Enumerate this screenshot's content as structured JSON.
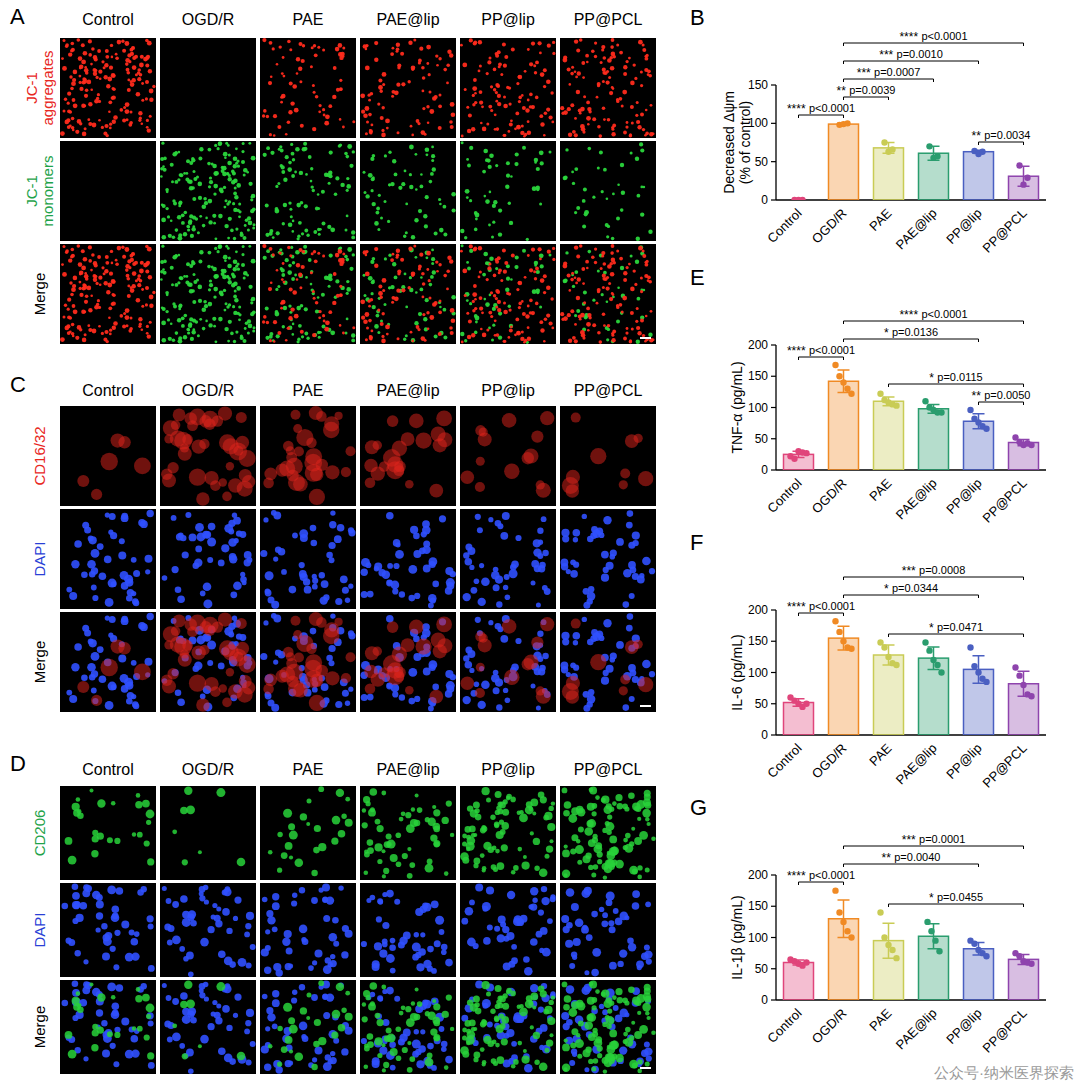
{
  "image_panels": [
    {
      "letter": "A",
      "columns": [
        "Control",
        "OGD/R",
        "PAE",
        "PAE@lip",
        "PP@lip",
        "PP@PCL"
      ],
      "rows": [
        {
          "label": "JC-1\naggregates",
          "color": "#e8281e"
        },
        {
          "label": "JC-1\nmonomers",
          "color": "#1fa34a"
        },
        {
          "label": "Merge",
          "color": "#000000"
        }
      ]
    },
    {
      "letter": "C",
      "columns": [
        "Control",
        "OGD/R",
        "PAE",
        "PAE@lip",
        "PP@lip",
        "PP@PCL"
      ],
      "rows": [
        {
          "label": "CD16/32",
          "color": "#e8281e"
        },
        {
          "label": "DAPI",
          "color": "#2a3fd6"
        },
        {
          "label": "Merge",
          "color": "#000000"
        }
      ]
    },
    {
      "letter": "D",
      "columns": [
        "Control",
        "OGD/R",
        "PAE",
        "PAE@lip",
        "PP@lip",
        "PP@PCL"
      ],
      "rows": [
        {
          "label": "CD206",
          "color": "#1fa34a"
        },
        {
          "label": "DAPI",
          "color": "#2a3fd6"
        },
        {
          "label": "Merge",
          "color": "#000000"
        }
      ]
    }
  ],
  "chart_data": [
    {
      "type": "bar",
      "panel_label": "B",
      "y_label": "Decreased Δψm\n(% of control)",
      "categories": [
        "Control",
        "OGD/R",
        "PAE",
        "PAE@lip",
        "PP@lip",
        "PP@PCL"
      ],
      "values": [
        0,
        99,
        68,
        61,
        63,
        31
      ],
      "errors": [
        0,
        1.5,
        7,
        9,
        2,
        13
      ],
      "points": [
        [
          0,
          0,
          0
        ],
        [
          98,
          99,
          100
        ],
        [
          75,
          63,
          66
        ],
        [
          70,
          55,
          57
        ],
        [
          64,
          60,
          63
        ],
        [
          45,
          20,
          29
        ]
      ],
      "colors": [
        "#e0457b",
        "#f08a24",
        "#c9cc55",
        "#2a9d6e",
        "#4a5fc1",
        "#8e44ad"
      ],
      "ylim": [
        0,
        150
      ],
      "yticks": [
        0,
        50,
        100,
        150
      ],
      "annotations": [
        {
          "from": 0,
          "to": 1,
          "stars": "****",
          "p": "p<0.0001"
        },
        {
          "from": 1,
          "to": 5,
          "stars": "****",
          "p": "p<0.0001"
        },
        {
          "from": 1,
          "to": 4,
          "stars": "***",
          "p": "p=0.0010"
        },
        {
          "from": 1,
          "to": 3,
          "stars": "***",
          "p": "p=0.0007"
        },
        {
          "from": 1,
          "to": 2,
          "stars": "**",
          "p": "p=0.0039"
        },
        {
          "from": 4,
          "to": 5,
          "stars": "**",
          "p": "p=0.0034"
        }
      ]
    },
    {
      "type": "bar",
      "panel_label": "E",
      "y_label": "TNF-α (pg/mL)",
      "categories": [
        "Control",
        "OGD/R",
        "PAE",
        "PAE@lip",
        "PP@lip",
        "PP@PCL"
      ],
      "values": [
        25,
        142,
        110,
        98,
        78,
        44
      ],
      "errors": [
        5,
        18,
        7,
        7,
        12,
        5
      ],
      "points": [
        [
          22,
          18,
          30,
          28,
          27
        ],
        [
          168,
          150,
          140,
          130,
          122
        ],
        [
          122,
          112,
          108,
          105,
          103
        ],
        [
          110,
          100,
          96,
          92,
          92
        ],
        [
          96,
          82,
          76,
          70,
          66
        ],
        [
          52,
          45,
          40,
          43,
          40
        ]
      ],
      "colors": [
        "#e0457b",
        "#f08a24",
        "#c9cc55",
        "#2a9d6e",
        "#4a5fc1",
        "#8e44ad"
      ],
      "ylim": [
        0,
        200
      ],
      "yticks": [
        0,
        50,
        100,
        150,
        200
      ],
      "annotations": [
        {
          "from": 0,
          "to": 1,
          "stars": "****",
          "p": "p<0.0001"
        },
        {
          "from": 1,
          "to": 5,
          "stars": "****",
          "p": "p<0.0001"
        },
        {
          "from": 1,
          "to": 4,
          "stars": "*",
          "p": "p=0.0136"
        },
        {
          "from": 2,
          "to": 5,
          "stars": "*",
          "p": "p=0.0115"
        },
        {
          "from": 4,
          "to": 5,
          "stars": "**",
          "p": "p=0.0050"
        }
      ]
    },
    {
      "type": "bar",
      "panel_label": "F",
      "y_label": "IL-6 (pg/mL)",
      "categories": [
        "Control",
        "OGD/R",
        "PAE",
        "PAE@lip",
        "PP@lip",
        "PP@PCL"
      ],
      "values": [
        52,
        155,
        128,
        123,
        105,
        82
      ],
      "errors": [
        6,
        19,
        16,
        18,
        22,
        20
      ],
      "points": [
        [
          60,
          55,
          50,
          45,
          50
        ],
        [
          182,
          165,
          150,
          140,
          138
        ],
        [
          148,
          140,
          125,
          115,
          112
        ],
        [
          148,
          135,
          120,
          112,
          100
        ],
        [
          140,
          110,
          100,
          90,
          85
        ],
        [
          108,
          95,
          80,
          65,
          62
        ]
      ],
      "colors": [
        "#e0457b",
        "#f08a24",
        "#c9cc55",
        "#2a9d6e",
        "#4a5fc1",
        "#8e44ad"
      ],
      "ylim": [
        0,
        200
      ],
      "yticks": [
        0,
        50,
        100,
        150,
        200
      ],
      "annotations": [
        {
          "from": 0,
          "to": 1,
          "stars": "****",
          "p": "p<0.0001"
        },
        {
          "from": 1,
          "to": 5,
          "stars": "***",
          "p": "p=0.0008"
        },
        {
          "from": 1,
          "to": 4,
          "stars": "*",
          "p": "p=0.0344"
        },
        {
          "from": 2,
          "to": 5,
          "stars": "*",
          "p": "p=0.0471"
        }
      ]
    },
    {
      "type": "bar",
      "panel_label": "G",
      "y_label": "IL-1β (pg/mL)",
      "categories": [
        "Control",
        "OGD/R",
        "PAE",
        "PAE@lip",
        "PP@lip",
        "PP@PCL"
      ],
      "values": [
        60,
        130,
        95,
        102,
        82,
        65
      ],
      "errors": [
        4,
        30,
        28,
        20,
        10,
        8
      ],
      "points": [
        [
          65,
          62,
          58,
          55,
          60
        ],
        [
          175,
          140,
          125,
          110,
          100
        ],
        [
          140,
          100,
          88,
          80,
          67
        ],
        [
          125,
          110,
          95,
          78
        ],
        [
          95,
          90,
          80,
          75,
          70
        ],
        [
          75,
          70,
          62,
          60,
          58
        ]
      ],
      "colors": [
        "#e0457b",
        "#f08a24",
        "#c9cc55",
        "#2a9d6e",
        "#4a5fc1",
        "#8e44ad"
      ],
      "ylim": [
        0,
        200
      ],
      "yticks": [
        0,
        50,
        100,
        150,
        200
      ],
      "annotations": [
        {
          "from": 0,
          "to": 1,
          "stars": "****",
          "p": "p<0.0001"
        },
        {
          "from": 1,
          "to": 5,
          "stars": "***",
          "p": "p=0.0001"
        },
        {
          "from": 1,
          "to": 4,
          "stars": "**",
          "p": "p=0.0040"
        },
        {
          "from": 2,
          "to": 5,
          "stars": "*",
          "p": "p=0.0455"
        }
      ]
    }
  ],
  "watermark": "公众号·纳米医界探索"
}
